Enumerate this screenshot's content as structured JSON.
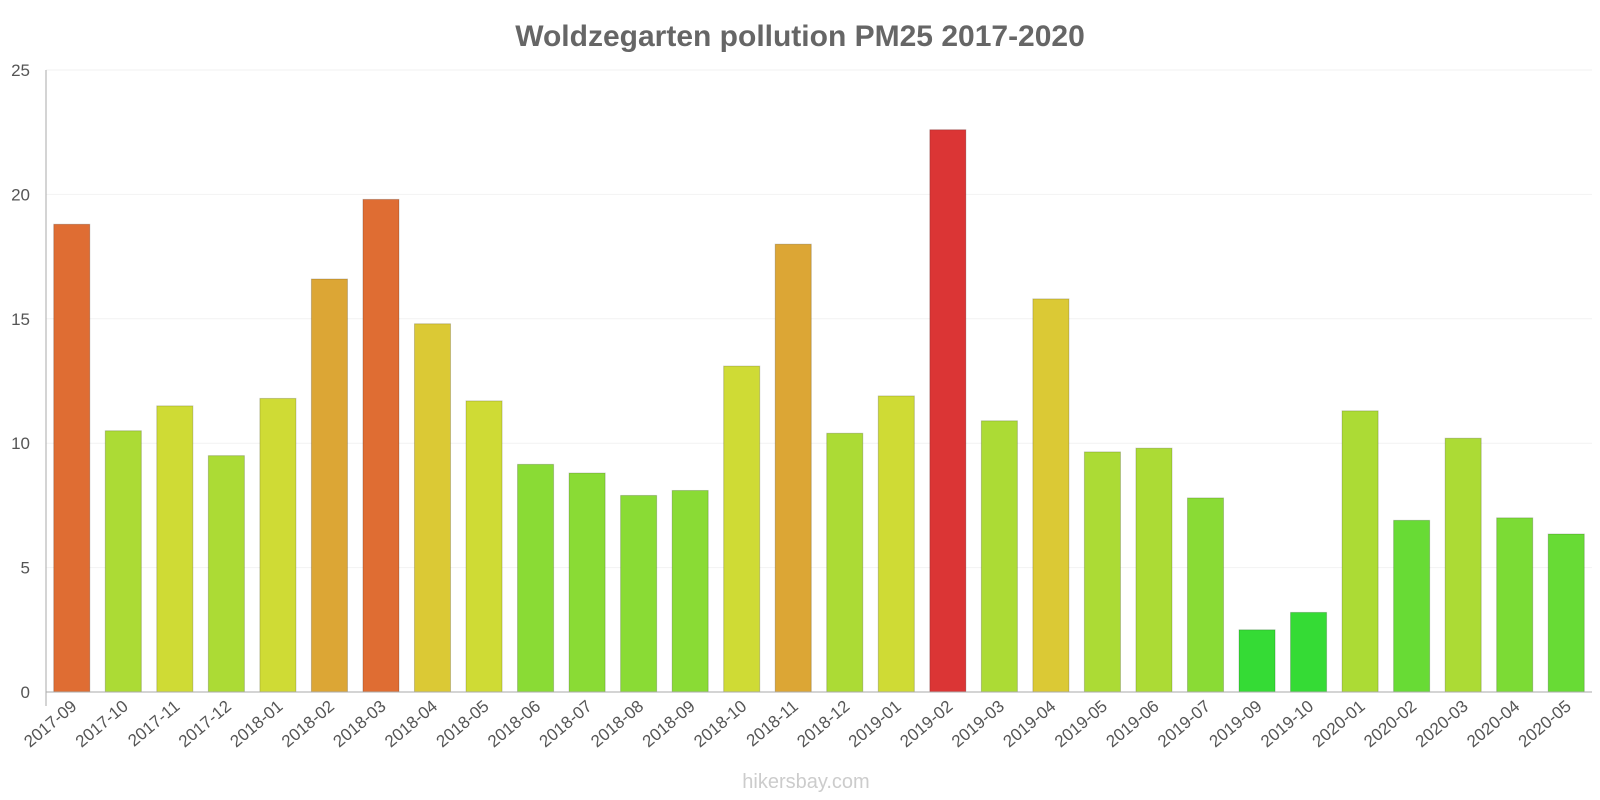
{
  "chart_data": {
    "type": "bar",
    "title": "Woldzegarten pollution PM25 2017-2020",
    "xlabel": "",
    "ylabel": "",
    "ylim": [
      0,
      25
    ],
    "yticks": [
      0,
      5,
      10,
      15,
      20,
      25
    ],
    "grid": true,
    "categories": [
      "2017-09",
      "2017-10",
      "2017-11",
      "2017-12",
      "2018-01",
      "2018-02",
      "2018-03",
      "2018-04",
      "2018-05",
      "2018-06",
      "2018-07",
      "2018-08",
      "2018-09",
      "2018-10",
      "2018-11",
      "2018-12",
      "2019-01",
      "2019-02",
      "2019-03",
      "2019-04",
      "2019-05",
      "2019-06",
      "2019-07",
      "2019-09",
      "2019-10",
      "2020-01",
      "2020-02",
      "2020-03",
      "2020-04",
      "2020-05"
    ],
    "values": [
      18.8,
      10.5,
      11.5,
      9.5,
      11.8,
      16.6,
      19.8,
      14.8,
      11.7,
      9.15,
      8.8,
      7.9,
      8.1,
      13.1,
      18.0,
      10.4,
      11.9,
      22.6,
      10.9,
      15.8,
      9.65,
      9.8,
      7.8,
      2.5,
      3.2,
      11.3,
      6.9,
      10.2,
      7.0,
      6.35
    ],
    "bar_colors": [
      "#df6d33",
      "#acdb35",
      "#cfdb35",
      "#acdb35",
      "#cfdb35",
      "#dca635",
      "#df6d33",
      "#dbc935",
      "#cfdb35",
      "#8adb35",
      "#8adb35",
      "#8adb35",
      "#8adb35",
      "#cfdb35",
      "#dca635",
      "#acdb35",
      "#cfdb35",
      "#db3535",
      "#acdb35",
      "#dbc935",
      "#acdb35",
      "#acdb35",
      "#8adb35",
      "#35db35",
      "#35db35",
      "#acdb35",
      "#68db35",
      "#acdb35",
      "#7cdb35",
      "#68db35"
    ],
    "watermark": "hikersbay.com"
  }
}
